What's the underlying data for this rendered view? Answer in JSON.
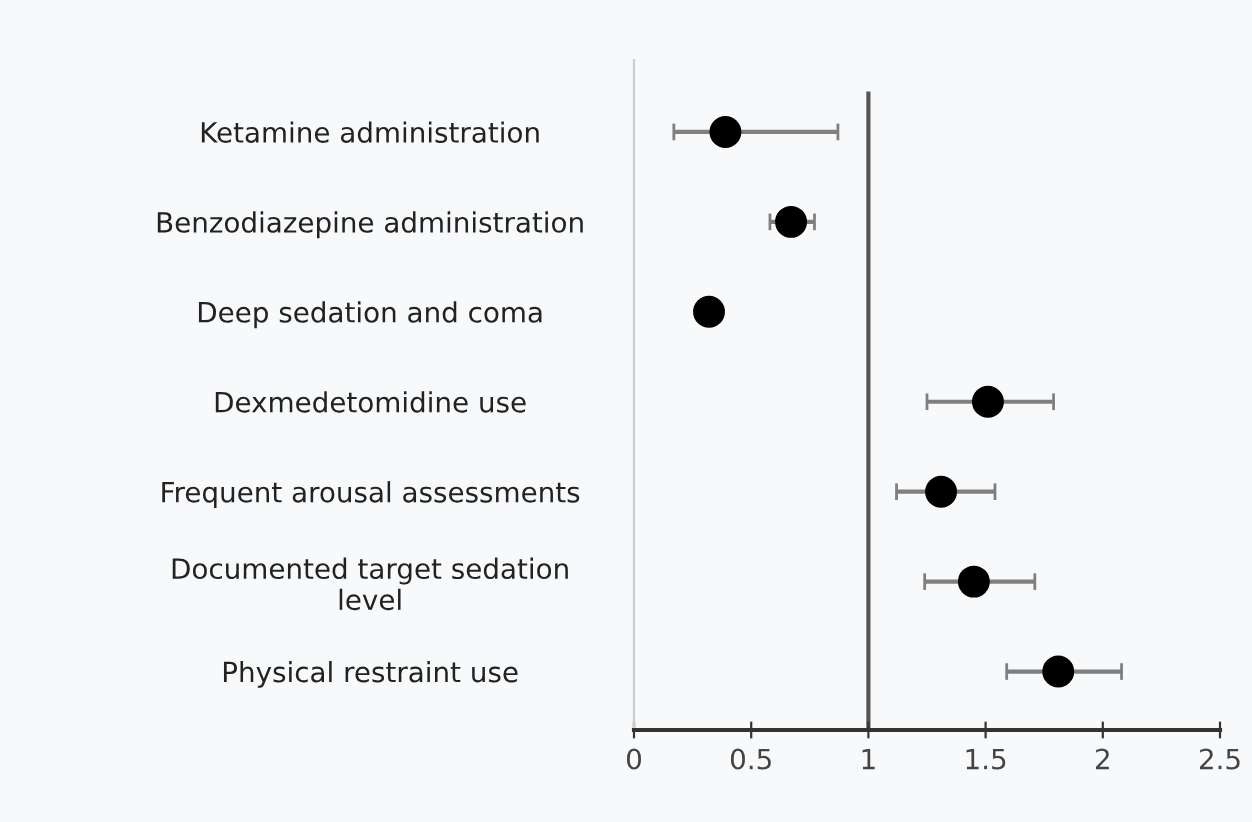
{
  "chart_data": {
    "type": "scatter",
    "orientation": "horizontal",
    "categories": [
      "Ketamine administration",
      "Benzodiazepine administration",
      "Deep sedation and coma",
      "Dexmedetomidine use",
      "Frequent arousal assessments",
      "Documented target sedation\nlevel",
      "Physical restraint use"
    ],
    "values": [
      0.39,
      0.67,
      0.32,
      1.51,
      1.31,
      1.45,
      1.81
    ],
    "errors": [
      [
        0.17,
        0.87
      ],
      [
        0.58,
        0.77
      ],
      null,
      [
        1.25,
        1.79
      ],
      [
        1.12,
        1.54
      ],
      [
        1.24,
        1.71
      ],
      [
        1.59,
        2.08
      ]
    ],
    "color": "#000000",
    "marker": "circle",
    "xlim": [
      0,
      2.5
    ],
    "xticks": [
      0,
      0.5,
      1,
      1.5,
      2,
      2.5
    ],
    "ref_lines": [
      {
        "axis": "x",
        "value": 1,
        "color": "#555555"
      }
    ],
    "grid": false,
    "legend": false
  }
}
